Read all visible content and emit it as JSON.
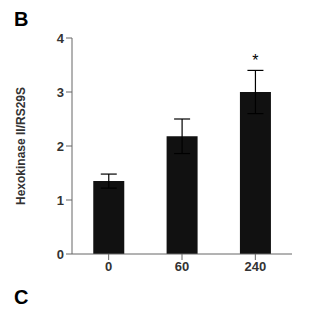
{
  "chart_data": {
    "type": "bar",
    "ylabel": "Hexokinase II/RS29S",
    "categories": [
      "0",
      "60",
      "240"
    ],
    "values": [
      1.35,
      2.18,
      3.0
    ],
    "errors": [
      0.13,
      0.32,
      0.4
    ],
    "color": "#111111",
    "ylim": [
      0,
      4
    ],
    "yticks": [
      0,
      1,
      2,
      3,
      4
    ],
    "grid": false,
    "annotations": [
      {
        "text": "*",
        "category": "240"
      }
    ],
    "panel_labels": [
      "B",
      "C"
    ]
  }
}
